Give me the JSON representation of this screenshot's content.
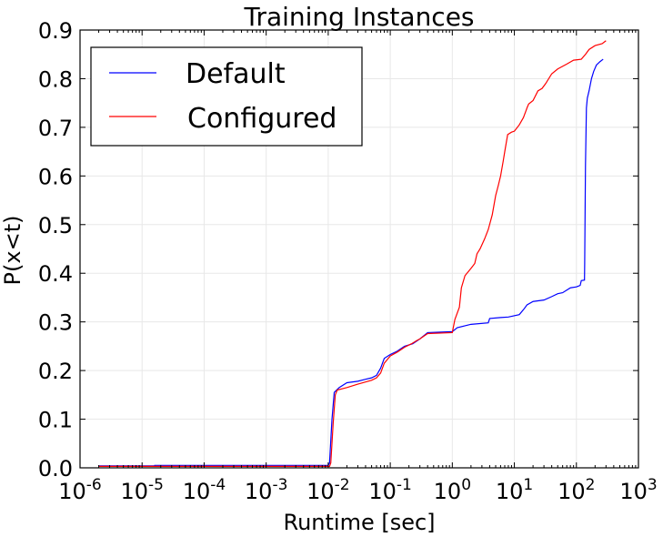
{
  "chart_data": {
    "type": "line",
    "title": "Training Instances",
    "xlabel": "Runtime [sec]",
    "ylabel": "P(x<t)",
    "xscale": "log",
    "xlim": [
      1e-06,
      1000
    ],
    "ylim": [
      0.0,
      0.9
    ],
    "x_ticks": [
      {
        "value": 1e-06,
        "base": "10",
        "exp": "-6"
      },
      {
        "value": 1e-05,
        "base": "10",
        "exp": "-5"
      },
      {
        "value": 0.0001,
        "base": "10",
        "exp": "-4"
      },
      {
        "value": 0.001,
        "base": "10",
        "exp": "-3"
      },
      {
        "value": 0.01,
        "base": "10",
        "exp": "-2"
      },
      {
        "value": 0.1,
        "base": "10",
        "exp": "-1"
      },
      {
        "value": 1,
        "base": "10",
        "exp": "0"
      },
      {
        "value": 10,
        "base": "10",
        "exp": "1"
      },
      {
        "value": 100,
        "base": "10",
        "exp": "2"
      },
      {
        "value": 1000,
        "base": "10",
        "exp": "3"
      }
    ],
    "y_ticks": [
      {
        "value": 0.0,
        "label": "0.0"
      },
      {
        "value": 0.1,
        "label": "0.1"
      },
      {
        "value": 0.2,
        "label": "0.2"
      },
      {
        "value": 0.3,
        "label": "0.3"
      },
      {
        "value": 0.4,
        "label": "0.4"
      },
      {
        "value": 0.5,
        "label": "0.5"
      },
      {
        "value": 0.6,
        "label": "0.6"
      },
      {
        "value": 0.7,
        "label": "0.7"
      },
      {
        "value": 0.8,
        "label": "0.8"
      },
      {
        "value": 0.9,
        "label": "0.9"
      }
    ],
    "grid": true,
    "legend": "top-left",
    "series": [
      {
        "name": "Default",
        "color": "#0000ff",
        "points": [
          [
            2e-06,
            0.004
          ],
          [
            1.6e-05,
            0.004
          ],
          [
            1.6e-05,
            0.005
          ],
          [
            0.01,
            0.005
          ],
          [
            0.0105,
            0.01
          ],
          [
            0.0115,
            0.1
          ],
          [
            0.0125,
            0.155
          ],
          [
            0.015,
            0.165
          ],
          [
            0.02,
            0.175
          ],
          [
            0.03,
            0.178
          ],
          [
            0.04,
            0.182
          ],
          [
            0.05,
            0.185
          ],
          [
            0.06,
            0.19
          ],
          [
            0.07,
            0.205
          ],
          [
            0.08,
            0.225
          ],
          [
            0.1,
            0.233
          ],
          [
            0.13,
            0.24
          ],
          [
            0.17,
            0.25
          ],
          [
            0.23,
            0.255
          ],
          [
            0.3,
            0.265
          ],
          [
            0.4,
            0.278
          ],
          [
            1.0,
            0.28
          ],
          [
            1.2,
            0.288
          ],
          [
            1.6,
            0.292
          ],
          [
            2.0,
            0.295
          ],
          [
            3.8,
            0.298
          ],
          [
            4.0,
            0.307
          ],
          [
            6.0,
            0.309
          ],
          [
            8.0,
            0.31
          ],
          [
            12.0,
            0.315
          ],
          [
            14.0,
            0.325
          ],
          [
            16.0,
            0.335
          ],
          [
            20.0,
            0.342
          ],
          [
            30.0,
            0.345
          ],
          [
            40.0,
            0.352
          ],
          [
            50.0,
            0.358
          ],
          [
            60.0,
            0.36
          ],
          [
            80.0,
            0.37
          ],
          [
            100.0,
            0.372
          ],
          [
            115.0,
            0.375
          ],
          [
            120.0,
            0.385
          ],
          [
            135.0,
            0.386
          ],
          [
            136.0,
            0.42
          ],
          [
            140.0,
            0.62
          ],
          [
            145.0,
            0.74
          ],
          [
            150.0,
            0.76
          ],
          [
            160.0,
            0.775
          ],
          [
            175.0,
            0.8
          ],
          [
            190.0,
            0.815
          ],
          [
            210.0,
            0.828
          ],
          [
            240.0,
            0.835
          ],
          [
            270.0,
            0.84
          ]
        ]
      },
      {
        "name": "Configured",
        "color": "#ff0000",
        "points": [
          [
            2e-06,
            0.003
          ],
          [
            0.0105,
            0.003
          ],
          [
            0.011,
            0.01
          ],
          [
            0.012,
            0.09
          ],
          [
            0.013,
            0.15
          ],
          [
            0.014,
            0.16
          ],
          [
            0.02,
            0.165
          ],
          [
            0.03,
            0.172
          ],
          [
            0.05,
            0.18
          ],
          [
            0.06,
            0.185
          ],
          [
            0.07,
            0.195
          ],
          [
            0.08,
            0.215
          ],
          [
            0.1,
            0.23
          ],
          [
            0.13,
            0.238
          ],
          [
            0.17,
            0.248
          ],
          [
            0.22,
            0.255
          ],
          [
            0.27,
            0.262
          ],
          [
            0.3,
            0.265
          ],
          [
            0.4,
            0.276
          ],
          [
            1.0,
            0.278
          ],
          [
            1.1,
            0.305
          ],
          [
            1.3,
            0.33
          ],
          [
            1.4,
            0.37
          ],
          [
            1.6,
            0.395
          ],
          [
            2.0,
            0.41
          ],
          [
            2.3,
            0.42
          ],
          [
            2.5,
            0.44
          ],
          [
            2.8,
            0.45
          ],
          [
            3.3,
            0.47
          ],
          [
            3.8,
            0.49
          ],
          [
            4.4,
            0.52
          ],
          [
            5.0,
            0.56
          ],
          [
            5.5,
            0.58
          ],
          [
            6.0,
            0.6
          ],
          [
            6.6,
            0.63
          ],
          [
            7.0,
            0.65
          ],
          [
            7.8,
            0.685
          ],
          [
            9.0,
            0.69
          ],
          [
            10.0,
            0.692
          ],
          [
            12.0,
            0.705
          ],
          [
            14.0,
            0.72
          ],
          [
            15.5,
            0.735
          ],
          [
            16.0,
            0.74
          ],
          [
            17.0,
            0.748
          ],
          [
            20.0,
            0.755
          ],
          [
            24.0,
            0.775
          ],
          [
            28.0,
            0.78
          ],
          [
            32.0,
            0.79
          ],
          [
            40.0,
            0.81
          ],
          [
            50.0,
            0.82
          ],
          [
            70.0,
            0.83
          ],
          [
            90.0,
            0.838
          ],
          [
            120.0,
            0.84
          ],
          [
            140.0,
            0.85
          ],
          [
            160.0,
            0.86
          ],
          [
            200.0,
            0.868
          ],
          [
            260.0,
            0.872
          ],
          [
            300.0,
            0.878
          ]
        ]
      }
    ]
  }
}
